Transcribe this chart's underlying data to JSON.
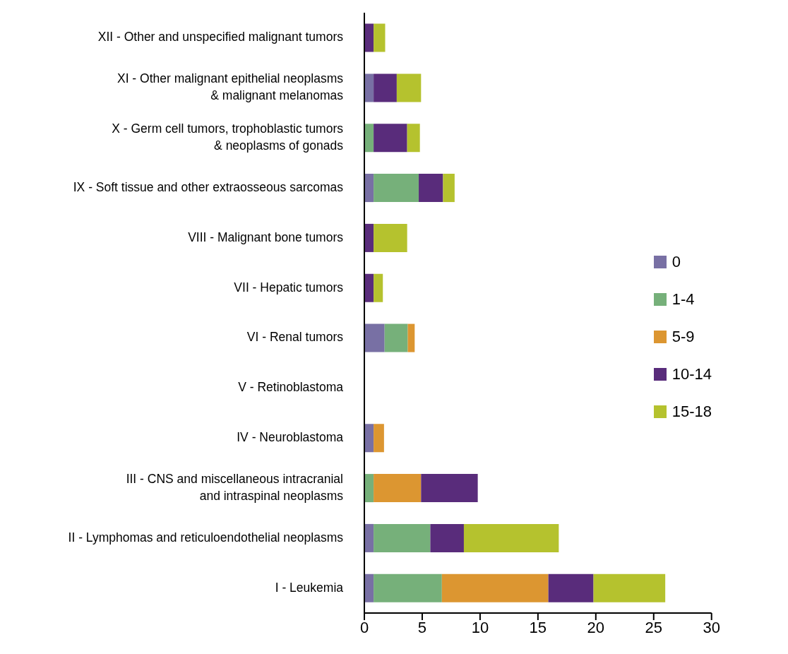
{
  "chart_data": {
    "type": "bar",
    "orientation": "horizontal",
    "stacked": true,
    "legend": "right",
    "categories": [
      "XII - Other and unspecified malignant tumors",
      "XI - Other malignant epithelial neoplasms\n& malignant melanomas",
      "X - Germ cell tumors, trophoblastic tumors\n& neoplasms of gonads",
      "IX - Soft tissue and other extraosseous sarcomas",
      "VIII - Malignant bone tumors",
      "VII - Hepatic tumors",
      "VI - Renal tumors",
      "V - Retinoblastoma",
      "IV - Neuroblastoma",
      "III - CNS and miscellaneous intracranial\nand intraspinal neoplasms",
      "II - Lymphomas and reticuloendothelial neoplasms",
      "I - Leukemia"
    ],
    "series": [
      {
        "name": "0",
        "color": "#7870a4",
        "values": [
          null,
          0.8,
          null,
          0.8,
          null,
          null,
          1.75,
          null,
          0.8,
          null,
          0.8,
          0.8
        ]
      },
      {
        "name": "1-4",
        "color": "#76b07a",
        "values": [
          null,
          null,
          0.8,
          3.9,
          null,
          null,
          2.0,
          null,
          null,
          0.8,
          4.9,
          5.9
        ]
      },
      {
        "name": "5-9",
        "color": "#dc9631",
        "values": [
          null,
          null,
          null,
          null,
          null,
          null,
          0.6,
          null,
          0.9,
          4.1,
          null,
          9.2
        ]
      },
      {
        "name": "10-14",
        "color": "#592c7b",
        "values": [
          0.8,
          2.0,
          2.9,
          2.1,
          0.8,
          0.8,
          null,
          null,
          null,
          4.9,
          2.9,
          3.9
        ]
      },
      {
        "name": "15-18",
        "color": "#b5c22e",
        "values": [
          1.0,
          2.1,
          1.1,
          1.0,
          2.9,
          0.8,
          null,
          null,
          null,
          null,
          8.2,
          6.2
        ]
      }
    ],
    "xlim": [
      0,
      30
    ],
    "xticks": [
      0,
      5,
      10,
      15,
      20,
      25,
      30
    ]
  }
}
